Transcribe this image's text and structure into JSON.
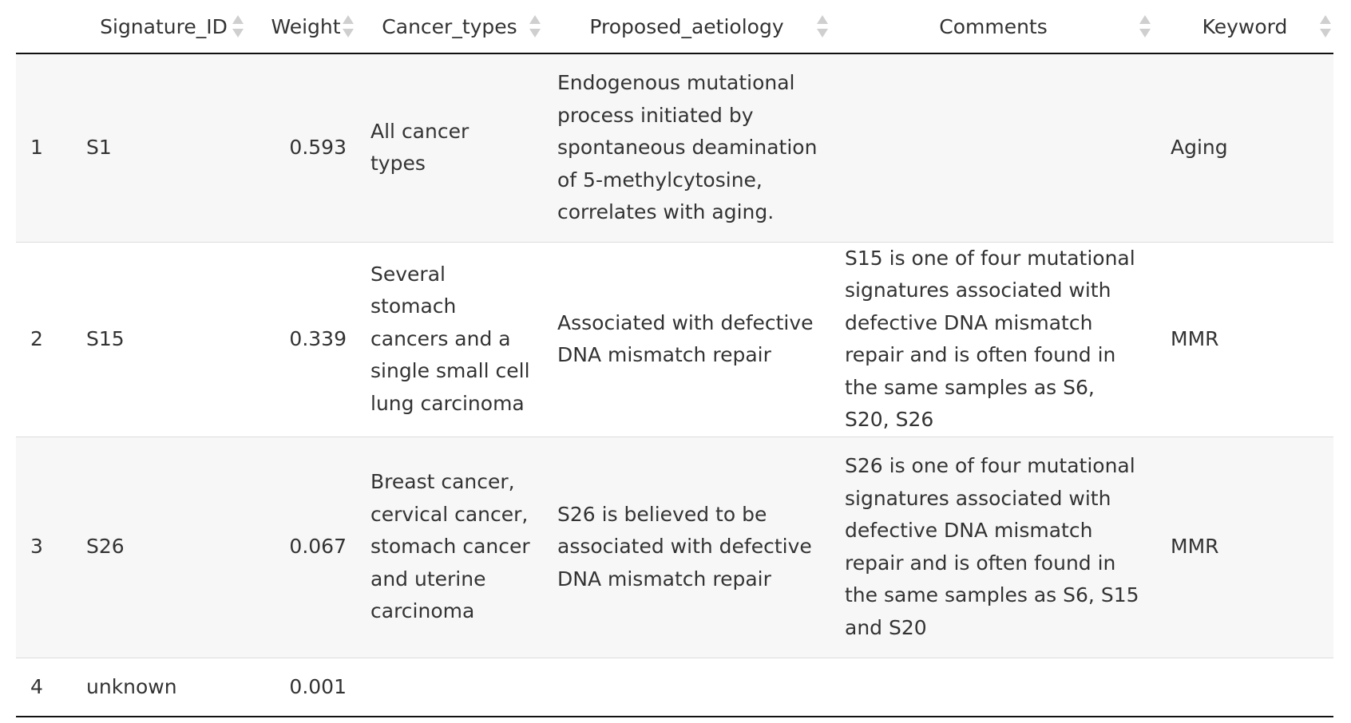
{
  "table": {
    "columns": [
      {
        "label": "",
        "sortable": false
      },
      {
        "label": "Signature_ID",
        "sortable": true
      },
      {
        "label": "Weight",
        "sortable": true
      },
      {
        "label": "Cancer_types",
        "sortable": true
      },
      {
        "label": "Proposed_aetiology",
        "sortable": true
      },
      {
        "label": "Comments",
        "sortable": true
      },
      {
        "label": "Keyword",
        "sortable": true
      }
    ],
    "rows": [
      {
        "index": "1",
        "signature_id": "S1",
        "weight": "0.593",
        "cancer_types": "All cancer types",
        "proposed_aetiology": "Endogenous mutational process initiated by spontaneous deamination of 5-methylcytosine, correlates with aging.",
        "comments": "",
        "keyword": "Aging"
      },
      {
        "index": "2",
        "signature_id": "S15",
        "weight": "0.339",
        "cancer_types": "Several stomach cancers and a single small cell lung carcinoma",
        "proposed_aetiology": "Associated with defective DNA mismatch repair",
        "comments": "S15 is one of four mutational signatures associated with defective DNA mismatch repair and is often found in the same samples as S6, S20, S26",
        "keyword": "MMR"
      },
      {
        "index": "3",
        "signature_id": "S26",
        "weight": "0.067",
        "cancer_types": "Breast cancer, cervical cancer, stomach cancer and uterine carcinoma",
        "proposed_aetiology": "S26 is believed to be associated with defective DNA mismatch repair",
        "comments": "S26 is one of four mutational signatures associated with defective DNA mismatch repair and is often found in the same samples as S6, S15 and S20",
        "keyword": "MMR"
      },
      {
        "index": "4",
        "signature_id": "unknown",
        "weight": "0.001",
        "cancer_types": "",
        "proposed_aetiology": "",
        "comments": "",
        "keyword": ""
      }
    ]
  }
}
